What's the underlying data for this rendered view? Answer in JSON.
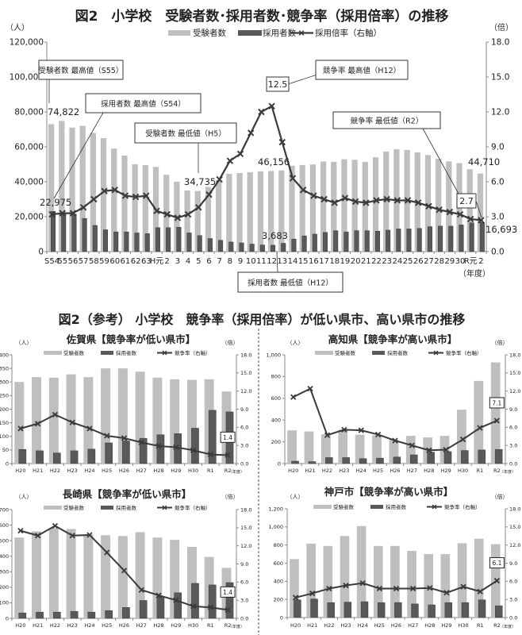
{
  "section2_title": "図2（参考） 小学校　競争率（採用倍率）が低い県市、高い県市の推移",
  "colors": {
    "examinees": "#bfbfbf",
    "hires": "#595959",
    "rate": "#3a3a3a"
  },
  "chart_data": [
    {
      "type": "bar+line",
      "title": "図2　小学校　受験者数･採用者数･競争率（採用倍率）の推移",
      "left_unit": "（人）",
      "right_unit": "（倍）",
      "x_unit": "（年度）",
      "legend": [
        "受験者数",
        "採用者数",
        "採用倍率（右軸）"
      ],
      "ylim": [
        0,
        120000
      ],
      "y2lim": [
        0,
        18
      ],
      "yticks": [
        "0",
        "20,000",
        "40,000",
        "60,000",
        "80,000",
        "100,000",
        "120,000"
      ],
      "y2ticks": [
        "0.0",
        "3.0",
        "6.0",
        "9.0",
        "12.0",
        "15.0",
        "18.0"
      ],
      "categories": [
        "S54",
        "55",
        "56",
        "57",
        "58",
        "59",
        "60",
        "61",
        "62",
        "63",
        "H元",
        "2",
        "3",
        "4",
        "5",
        "6",
        "7",
        "8",
        "9",
        "10",
        "11",
        "12",
        "13",
        "14",
        "15",
        "16",
        "17",
        "18",
        "19",
        "20",
        "21",
        "22",
        "23",
        "24",
        "25",
        "26",
        "27",
        "28",
        "29",
        "30",
        "R元",
        "2"
      ],
      "series": [
        {
          "name": "受験者数",
          "axis": "left",
          "kind": "bar",
          "values": [
            73000,
            74822,
            71000,
            72000,
            68000,
            65000,
            59000,
            55000,
            50000,
            49500,
            48500,
            44000,
            40000,
            35000,
            34735,
            37000,
            41000,
            44500,
            45000,
            45500,
            46000,
            46156,
            46500,
            49200,
            49600,
            49900,
            51600,
            51400,
            52900,
            52600,
            51400,
            54000,
            57300,
            58600,
            58200,
            56800,
            55300,
            53200,
            51700,
            50700,
            47200,
            44710
          ]
        },
        {
          "name": "採用者数",
          "axis": "left",
          "kind": "bar",
          "values": [
            22975,
            22000,
            21500,
            19000,
            15000,
            12500,
            11300,
            11300,
            10700,
            10300,
            13700,
            13700,
            14000,
            10700,
            9200,
            7500,
            6500,
            5500,
            5000,
            4300,
            3800,
            3683,
            4800,
            7200,
            9000,
            10000,
            11000,
            12000,
            11300,
            12000,
            12000,
            11700,
            12300,
            13000,
            13000,
            13300,
            14300,
            14600,
            14600,
            15300,
            16500,
            16693
          ]
        },
        {
          "name": "採用倍率",
          "axis": "right",
          "kind": "line",
          "values": [
            3.2,
            3.3,
            3.3,
            3.8,
            4.5,
            5.2,
            5.3,
            4.8,
            4.7,
            4.8,
            3.5,
            3.2,
            2.9,
            3.2,
            3.8,
            4.9,
            6.2,
            7.8,
            8.4,
            10.2,
            12.0,
            12.5,
            9.4,
            6.3,
            5.3,
            4.8,
            4.5,
            4.2,
            4.6,
            4.3,
            4.2,
            4.4,
            4.5,
            4.4,
            4.4,
            4.2,
            3.9,
            3.6,
            3.4,
            3.2,
            2.8,
            2.7
          ]
        }
      ],
      "annotations": [
        {
          "text": "受験者数 最高値（S55）"
        },
        {
          "text": "74,822"
        },
        {
          "text": "採用者数 最高値（S54）"
        },
        {
          "text": "22,975"
        },
        {
          "text": "受験者数 最低値（H5）"
        },
        {
          "text": "34,735"
        },
        {
          "text": "競争率 最高値（H12）"
        },
        {
          "text": "12.5"
        },
        {
          "text": "46,156"
        },
        {
          "text": "3,683"
        },
        {
          "text": "採用者数 最低値（H12）"
        },
        {
          "text": "競争率 最低値（R2）"
        },
        {
          "text": "2.7"
        },
        {
          "text": "44,710"
        },
        {
          "text": "16,693"
        }
      ]
    },
    {
      "type": "bar+line",
      "title": "佐賀県【競争率が低い県市】",
      "left_unit": "（人）",
      "right_unit": "（倍）",
      "x_unit": "（年度）",
      "legend": [
        "受験者数",
        "採用者数",
        "競争率（右軸）"
      ],
      "ylim": [
        0,
        400
      ],
      "y2lim": [
        0,
        18
      ],
      "yticks": [
        "0",
        "50",
        "100",
        "150",
        "200",
        "250",
        "300",
        "350",
        "400"
      ],
      "y2ticks": [
        "0.0",
        "3.0",
        "6.0",
        "9.0",
        "12.0",
        "15.0",
        "18.0"
      ],
      "categories": [
        "H20",
        "H21",
        "H22",
        "H23",
        "H24",
        "H25",
        "H26",
        "H27",
        "H28",
        "H29",
        "H30",
        "R1",
        "R2"
      ],
      "series": [
        {
          "name": "受験者数",
          "axis": "left",
          "kind": "bar",
          "values": [
            300,
            318,
            316,
            328,
            318,
            350,
            350,
            338,
            316,
            310,
            308,
            310,
            265
          ]
        },
        {
          "name": "採用者数",
          "axis": "left",
          "kind": "bar",
          "values": [
            52,
            47,
            39,
            47,
            53,
            76,
            83,
            93,
            106,
            110,
            130,
            196,
            190
          ]
        },
        {
          "name": "競争率",
          "axis": "right",
          "kind": "line",
          "values": [
            5.8,
            6.6,
            8.1,
            6.8,
            5.8,
            4.6,
            4.2,
            3.5,
            2.9,
            2.7,
            2.2,
            1.5,
            1.4
          ]
        }
      ],
      "annotations": [
        {
          "text": "1.4"
        }
      ]
    },
    {
      "type": "bar+line",
      "title": "高知県【競争率が高い県市】",
      "left_unit": "（人）",
      "right_unit": "（倍）",
      "x_unit": "（年度）",
      "legend": [
        "受験者数",
        "採用者数",
        "競争率（右軸）"
      ],
      "ylim": [
        0,
        1000
      ],
      "y2lim": [
        0,
        18
      ],
      "yticks": [
        "0",
        "200",
        "400",
        "600",
        "800",
        "1,000"
      ],
      "y2ticks": [
        "0.0",
        "3.0",
        "6.0",
        "9.0",
        "12.0",
        "15.0",
        "18.0"
      ],
      "categories": [
        "H20",
        "H21",
        "H22",
        "H23",
        "H24",
        "H25",
        "H26",
        "H27",
        "H28",
        "H29",
        "H30",
        "R1",
        "R2"
      ],
      "series": [
        {
          "name": "受験者数",
          "axis": "left",
          "kind": "bar",
          "values": [
            305,
            295,
            270,
            310,
            265,
            260,
            220,
            255,
            240,
            255,
            495,
            760,
            930
          ]
        },
        {
          "name": "採用者数",
          "axis": "left",
          "kind": "bar",
          "values": [
            22,
            18,
            55,
            55,
            45,
            50,
            60,
            80,
            105,
            110,
            120,
            125,
            130
          ]
        },
        {
          "name": "競争率",
          "axis": "right",
          "kind": "line",
          "values": [
            11.0,
            12.4,
            4.7,
            5.6,
            5.5,
            4.8,
            3.8,
            3.0,
            2.2,
            2.3,
            4.0,
            5.9,
            7.1
          ]
        }
      ],
      "annotations": [
        {
          "text": "7.1"
        }
      ]
    },
    {
      "type": "bar+line",
      "title": "長崎県【競争率が低い県市】",
      "left_unit": "（人）",
      "right_unit": "（倍）",
      "x_unit": "（年度）",
      "legend": [
        "受験者数",
        "採用者数",
        "競争率（右軸）"
      ],
      "ylim": [
        0,
        700
      ],
      "y2lim": [
        0,
        18
      ],
      "yticks": [
        "0",
        "100",
        "200",
        "300",
        "400",
        "500",
        "600",
        "700"
      ],
      "y2ticks": [
        "0.0",
        "3.0",
        "6.0",
        "9.0",
        "12.0",
        "15.0",
        "18.0"
      ],
      "categories": [
        "H20",
        "H21",
        "H22",
        "H23",
        "H24",
        "H25",
        "H26",
        "H27",
        "H28",
        "H29",
        "H30",
        "R1",
        "R2"
      ],
      "series": [
        {
          "name": "受験者数",
          "axis": "left",
          "kind": "bar",
          "values": [
            520,
            560,
            580,
            575,
            540,
            535,
            530,
            555,
            520,
            505,
            460,
            395,
            325
          ]
        },
        {
          "name": "採用者数",
          "axis": "left",
          "kind": "bar",
          "values": [
            35,
            40,
            40,
            45,
            40,
            50,
            70,
            115,
            140,
            165,
            225,
            215,
            230
          ]
        },
        {
          "name": "競争率",
          "axis": "right",
          "kind": "line",
          "values": [
            14.5,
            13.7,
            15.3,
            13.7,
            13.8,
            10.9,
            7.9,
            4.7,
            3.8,
            3.0,
            2.0,
            1.8,
            1.4
          ]
        }
      ],
      "annotations": [
        {
          "text": "1.4"
        }
      ]
    },
    {
      "type": "bar+line",
      "title": "神戸市【競争率が高い県市】",
      "left_unit": "（人）",
      "right_unit": "（倍）",
      "x_unit": "（年度）",
      "legend": [
        "受験者数",
        "採用者数",
        "競争率（右軸）"
      ],
      "ylim": [
        0,
        1200
      ],
      "y2lim": [
        0,
        18
      ],
      "yticks": [
        "0",
        "200",
        "400",
        "600",
        "800",
        "1,000",
        "1,200"
      ],
      "y2ticks": [
        "0.0",
        "3.0",
        "6.0",
        "9.0",
        "12.0",
        "15.0",
        "18.0"
      ],
      "categories": [
        "H20",
        "H21",
        "H22",
        "H23",
        "H24",
        "H25",
        "H26",
        "H27",
        "H28",
        "H29",
        "H30",
        "R1",
        "R2"
      ],
      "series": [
        {
          "name": "受験者数",
          "axis": "left",
          "kind": "bar",
          "values": [
            645,
            815,
            790,
            900,
            1010,
            790,
            790,
            735,
            700,
            700,
            820,
            870,
            810
          ]
        },
        {
          "name": "採用者数",
          "axis": "left",
          "kind": "bar",
          "values": [
            195,
            205,
            165,
            170,
            175,
            165,
            165,
            150,
            140,
            165,
            165,
            195,
            130
          ]
        },
        {
          "name": "競争率",
          "axis": "right",
          "kind": "line",
          "values": [
            3.3,
            4.0,
            4.8,
            5.3,
            5.7,
            4.8,
            4.8,
            4.8,
            4.9,
            4.1,
            5.1,
            4.3,
            6.1
          ]
        }
      ],
      "annotations": [
        {
          "text": "6.1"
        }
      ]
    }
  ]
}
